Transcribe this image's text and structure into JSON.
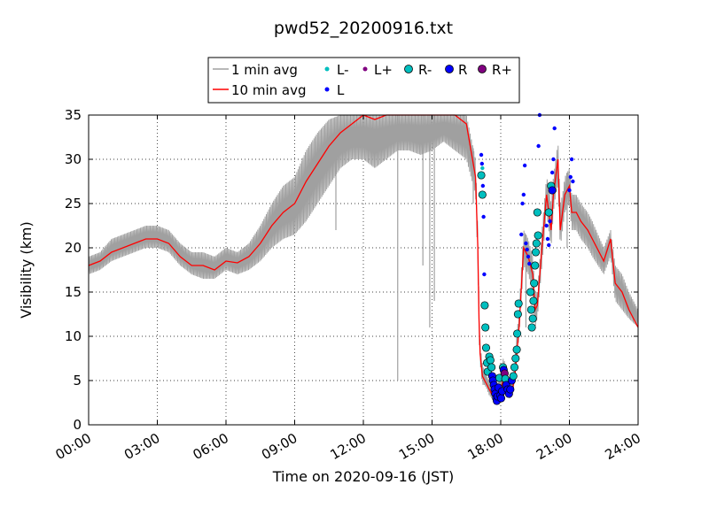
{
  "chart_data": {
    "type": "line",
    "title": "pwd52_20200916.txt",
    "xlabel": "Time on 2020-09-16 (JST)",
    "ylabel": "Visibility (km)",
    "x_unit": "hours",
    "xlim": [
      0,
      24
    ],
    "ylim": [
      0,
      35
    ],
    "x_ticks": [
      0,
      3,
      6,
      9,
      12,
      15,
      18,
      21,
      24
    ],
    "x_tick_labels": [
      "00:00",
      "03:00",
      "06:00",
      "09:00",
      "12:00",
      "15:00",
      "18:00",
      "21:00",
      "24:00"
    ],
    "y_ticks": [
      0,
      5,
      10,
      15,
      20,
      25,
      30,
      35
    ],
    "y_tick_labels": [
      "0",
      "5",
      "10",
      "15",
      "20",
      "25",
      "30",
      "35"
    ],
    "grid": true,
    "legend_position": "top-center",
    "legend": [
      {
        "label": "1 min avg",
        "kind": "line",
        "color": "#a0a0a0"
      },
      {
        "label": "10 min avg",
        "kind": "line",
        "color": "#ff0000"
      },
      {
        "label": "L-",
        "kind": "small-dot",
        "color": "#00bfbf"
      },
      {
        "label": "L",
        "kind": "small-dot",
        "color": "#0000ff"
      },
      {
        "label": "L+",
        "kind": "small-dot",
        "color": "#800080"
      },
      {
        "label": "R-",
        "kind": "circle",
        "color": "#00bfbf"
      },
      {
        "label": "R",
        "kind": "circle",
        "color": "#0000ff"
      },
      {
        "label": "R+",
        "kind": "circle",
        "color": "#800080"
      }
    ],
    "series": [
      {
        "name": "10 min avg",
        "color": "#ff0000",
        "x": [
          0,
          0.5,
          1,
          1.5,
          2,
          2.5,
          3,
          3.5,
          4,
          4.5,
          5,
          5.5,
          6,
          6.5,
          7,
          7.5,
          8,
          8.5,
          9,
          9.5,
          10,
          10.5,
          11,
          11.5,
          12,
          12.5,
          13,
          13.5,
          14,
          14.5,
          15,
          15.5,
          16,
          16.5,
          16.9,
          17,
          17.05,
          17.1,
          17.2,
          17.3,
          17.4,
          17.5,
          17.6,
          17.7,
          17.8,
          17.9,
          18,
          18.1,
          18.2,
          18.3,
          18.4,
          18.5,
          18.6,
          18.8,
          19,
          19.2,
          19.4,
          19.5,
          19.6,
          19.8,
          20,
          20.1,
          20.2,
          20.3,
          20.4,
          20.5,
          20.6,
          20.7,
          20.8,
          21,
          21.1,
          21.3,
          21.5,
          21.8,
          22,
          22.5,
          22.8,
          23,
          23.3,
          23.6,
          24
        ],
        "y": [
          18,
          18.5,
          19.5,
          20,
          20.5,
          21,
          21,
          20.5,
          19,
          18,
          18,
          17.5,
          18.5,
          18.3,
          19,
          20.5,
          22.5,
          24,
          25,
          27.5,
          29.5,
          31.5,
          33,
          34,
          35,
          34.5,
          35,
          35,
          35,
          35,
          35,
          35,
          35,
          34,
          28,
          20,
          12,
          8,
          5.5,
          5,
          4.5,
          4,
          3.5,
          3.2,
          3.3,
          3.5,
          4,
          5,
          5.5,
          4,
          3.5,
          4,
          5,
          11,
          20,
          19,
          17,
          13,
          13.5,
          20,
          26,
          24,
          22,
          26,
          28,
          30,
          22,
          24,
          26,
          27,
          24,
          24,
          23,
          22,
          21,
          18.5,
          21,
          16,
          15,
          13,
          11
        ]
      }
    ],
    "one_min_band": {
      "name": "1 min avg",
      "color": "#a0a0a0",
      "x": [
        0,
        0.5,
        1,
        1.5,
        2,
        2.5,
        3,
        3.5,
        4,
        4.5,
        5,
        5.5,
        6,
        6.5,
        7,
        7.5,
        8,
        8.5,
        9,
        9.5,
        10,
        10.5,
        11,
        11.5,
        12,
        12.5,
        13,
        13.5,
        14,
        14.5,
        15,
        15.5,
        16,
        16.5,
        16.9,
        17,
        17.05,
        17.1,
        17.2,
        17.3,
        17.4,
        17.5,
        17.6,
        17.7,
        17.8,
        17.9,
        18,
        18.1,
        18.2,
        18.3,
        18.4,
        18.5,
        18.6,
        18.8,
        19,
        19.2,
        19.4,
        19.5,
        19.6,
        19.8,
        20,
        20.1,
        20.2,
        20.3,
        20.4,
        20.5,
        20.6,
        20.7,
        20.8,
        21,
        21.1,
        21.3,
        21.5,
        21.8,
        22,
        22.5,
        22.8,
        23,
        23.3,
        23.6,
        24
      ],
      "low": [
        17,
        17.5,
        18.5,
        19,
        19.5,
        20,
        20,
        19.5,
        18,
        17,
        16.5,
        16.5,
        17.5,
        17,
        17.5,
        18.5,
        20,
        21,
        21.5,
        23,
        25,
        27,
        29,
        30,
        30,
        29,
        30,
        31,
        31,
        30.5,
        31,
        32,
        31,
        30,
        26,
        18,
        10,
        7,
        4.5,
        4.5,
        4,
        3.3,
        3,
        2.8,
        2.9,
        3,
        3.5,
        4,
        4.5,
        3.5,
        3,
        3.5,
        4.5,
        10,
        18,
        17,
        15,
        11,
        12,
        18,
        24,
        22,
        20,
        24,
        26,
        27,
        20,
        22,
        24,
        25,
        22,
        22,
        21,
        20,
        19,
        17,
        19,
        14,
        13,
        12,
        11
      ],
      "high": [
        19,
        19.5,
        21,
        21.5,
        22,
        22.5,
        22.5,
        22,
        20.5,
        19.5,
        19.5,
        19,
        20,
        19.5,
        20.5,
        22.5,
        25,
        27,
        28,
        31,
        33,
        34.5,
        35,
        35,
        35,
        35,
        35,
        35,
        35,
        35,
        35,
        35,
        35,
        35,
        30,
        22,
        14,
        9,
        7,
        6,
        5.5,
        5,
        4.5,
        4,
        4.2,
        5,
        6,
        7.5,
        7,
        5,
        4.5,
        5,
        7,
        13,
        22,
        21,
        19,
        15,
        15,
        22,
        28,
        27,
        25,
        28,
        30,
        32,
        25,
        26,
        28,
        29,
        26,
        26,
        25,
        24,
        23,
        20,
        22,
        18,
        17,
        15,
        13
      ],
      "spikes": [
        {
          "x": 13.5,
          "low": 5
        },
        {
          "x": 14.9,
          "low": 11
        },
        {
          "x": 15.1,
          "low": 14
        },
        {
          "x": 14.6,
          "low": 18
        },
        {
          "x": 10.8,
          "low": 22
        },
        {
          "x": 16.8,
          "low": 25
        },
        {
          "x": 19.1,
          "low": 11
        },
        {
          "x": 20.9,
          "low": 20
        }
      ]
    },
    "markers": [
      {
        "x": 17.15,
        "y": 28.2,
        "kind": "R-"
      },
      {
        "x": 17.2,
        "y": 26,
        "kind": "R-"
      },
      {
        "x": 17.3,
        "y": 13.5,
        "kind": "R-"
      },
      {
        "x": 17.33,
        "y": 11,
        "kind": "R-"
      },
      {
        "x": 17.36,
        "y": 8.7,
        "kind": "R-"
      },
      {
        "x": 17.4,
        "y": 7,
        "kind": "R-"
      },
      {
        "x": 17.43,
        "y": 6,
        "kind": "R-"
      },
      {
        "x": 17.5,
        "y": 7.7,
        "kind": "R-"
      },
      {
        "x": 17.55,
        "y": 7.3,
        "kind": "R-"
      },
      {
        "x": 17.6,
        "y": 6.5,
        "kind": "R-"
      },
      {
        "x": 17.63,
        "y": 5.5,
        "kind": "R"
      },
      {
        "x": 17.66,
        "y": 5,
        "kind": "R"
      },
      {
        "x": 17.7,
        "y": 4.5,
        "kind": "R"
      },
      {
        "x": 17.73,
        "y": 4,
        "kind": "R"
      },
      {
        "x": 17.76,
        "y": 3.5,
        "kind": "R"
      },
      {
        "x": 17.8,
        "y": 3,
        "kind": "R"
      },
      {
        "x": 17.83,
        "y": 2.7,
        "kind": "R"
      },
      {
        "x": 17.86,
        "y": 3.2,
        "kind": "R"
      },
      {
        "x": 17.9,
        "y": 4.2,
        "kind": "R"
      },
      {
        "x": 17.94,
        "y": 5.3,
        "kind": "R-"
      },
      {
        "x": 17.98,
        "y": 3.3,
        "kind": "R"
      },
      {
        "x": 18.02,
        "y": 3,
        "kind": "R"
      },
      {
        "x": 18.06,
        "y": 3.8,
        "kind": "R"
      },
      {
        "x": 18.1,
        "y": 6.5,
        "kind": "R-"
      },
      {
        "x": 18.13,
        "y": 6.2,
        "kind": "R"
      },
      {
        "x": 18.17,
        "y": 5.8,
        "kind": "R+"
      },
      {
        "x": 18.2,
        "y": 5.2,
        "kind": "R-"
      },
      {
        "x": 18.24,
        "y": 4.5,
        "kind": "R"
      },
      {
        "x": 18.3,
        "y": 4,
        "kind": "R"
      },
      {
        "x": 18.36,
        "y": 3.5,
        "kind": "R"
      },
      {
        "x": 18.42,
        "y": 4,
        "kind": "R"
      },
      {
        "x": 18.48,
        "y": 5,
        "kind": "R"
      },
      {
        "x": 18.55,
        "y": 5.5,
        "kind": "R-"
      },
      {
        "x": 18.6,
        "y": 6.5,
        "kind": "R-"
      },
      {
        "x": 18.65,
        "y": 7.5,
        "kind": "R-"
      },
      {
        "x": 18.7,
        "y": 8.5,
        "kind": "R-"
      },
      {
        "x": 18.72,
        "y": 10.3,
        "kind": "R-"
      },
      {
        "x": 18.75,
        "y": 12.5,
        "kind": "R-"
      },
      {
        "x": 18.78,
        "y": 13.7,
        "kind": "R-"
      },
      {
        "x": 19.3,
        "y": 15,
        "kind": "R-"
      },
      {
        "x": 19.33,
        "y": 13,
        "kind": "R-"
      },
      {
        "x": 19.36,
        "y": 11,
        "kind": "R-"
      },
      {
        "x": 19.4,
        "y": 12,
        "kind": "R-"
      },
      {
        "x": 19.43,
        "y": 14,
        "kind": "R-"
      },
      {
        "x": 19.46,
        "y": 16,
        "kind": "R-"
      },
      {
        "x": 19.5,
        "y": 18,
        "kind": "R-"
      },
      {
        "x": 19.53,
        "y": 19.5,
        "kind": "R-"
      },
      {
        "x": 19.56,
        "y": 20.5,
        "kind": "R-"
      },
      {
        "x": 19.6,
        "y": 24,
        "kind": "R-"
      },
      {
        "x": 19.63,
        "y": 21.4,
        "kind": "R-"
      },
      {
        "x": 20.1,
        "y": 24,
        "kind": "R-"
      },
      {
        "x": 20.2,
        "y": 27,
        "kind": "R-"
      },
      {
        "x": 20.25,
        "y": 26.5,
        "kind": "R"
      },
      {
        "x": 17.15,
        "y": 30.5,
        "kind": "L"
      },
      {
        "x": 17.18,
        "y": 29.5,
        "kind": "L"
      },
      {
        "x": 17.22,
        "y": 27,
        "kind": "L"
      },
      {
        "x": 17.25,
        "y": 23.5,
        "kind": "L"
      },
      {
        "x": 17.28,
        "y": 17,
        "kind": "L"
      },
      {
        "x": 18.9,
        "y": 21.5,
        "kind": "L"
      },
      {
        "x": 18.95,
        "y": 25,
        "kind": "L"
      },
      {
        "x": 19,
        "y": 26,
        "kind": "L"
      },
      {
        "x": 19.05,
        "y": 29.3,
        "kind": "L"
      },
      {
        "x": 19.1,
        "y": 20.5,
        "kind": "L"
      },
      {
        "x": 19.15,
        "y": 19.8,
        "kind": "L"
      },
      {
        "x": 19.2,
        "y": 19,
        "kind": "L"
      },
      {
        "x": 19.25,
        "y": 18.2,
        "kind": "L"
      },
      {
        "x": 19.65,
        "y": 31.5,
        "kind": "L"
      },
      {
        "x": 19.7,
        "y": 35,
        "kind": "L"
      },
      {
        "x": 20,
        "y": 22.5,
        "kind": "L"
      },
      {
        "x": 20.05,
        "y": 21,
        "kind": "L"
      },
      {
        "x": 20.1,
        "y": 20.3,
        "kind": "L"
      },
      {
        "x": 20.15,
        "y": 23,
        "kind": "L"
      },
      {
        "x": 20.25,
        "y": 28.5,
        "kind": "L"
      },
      {
        "x": 20.3,
        "y": 30,
        "kind": "L"
      },
      {
        "x": 20.35,
        "y": 33.5,
        "kind": "L"
      },
      {
        "x": 21,
        "y": 26.5,
        "kind": "L"
      },
      {
        "x": 21.05,
        "y": 28,
        "kind": "L"
      },
      {
        "x": 21.1,
        "y": 30,
        "kind": "L"
      },
      {
        "x": 21.15,
        "y": 27.5,
        "kind": "L"
      },
      {
        "x": 17.2,
        "y": 29,
        "kind": "L-"
      }
    ]
  }
}
